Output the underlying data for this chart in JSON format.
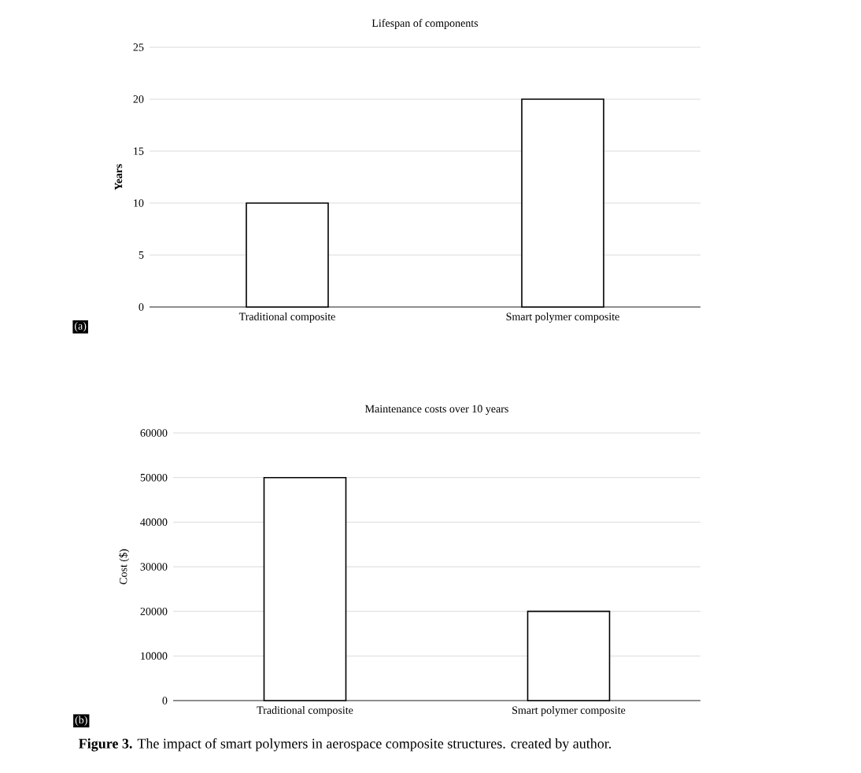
{
  "chart_data": [
    {
      "type": "bar",
      "title": "Lifespan of components",
      "ylabel": "Years",
      "categories": [
        "Traditional composite",
        "Smart polymer composite"
      ],
      "values": [
        10,
        20
      ],
      "colors": [
        "#ffffff",
        "#ffffff"
      ],
      "ylim": [
        0,
        25
      ],
      "yticks": [
        0,
        5,
        10,
        15,
        20,
        25
      ],
      "grid": "y",
      "annotations": [
        "(a)"
      ]
    },
    {
      "type": "bar",
      "title": "Maintenance costs over 10 years",
      "ylabel": "Cost ($)",
      "categories": [
        "Traditional composite",
        "Smart polymer composite"
      ],
      "values": [
        50000,
        20000
      ],
      "colors": [
        "#ffffff",
        "#ffffff"
      ],
      "ylim": [
        0,
        60000
      ],
      "yticks": [
        0,
        10000,
        20000,
        30000,
        40000,
        50000,
        60000
      ],
      "grid": "y",
      "annotations": [
        "(b)",
        "**Figure 3.** The impact of smart polymers in aerospace composite structures. created by author."
      ]
    }
  ]
}
